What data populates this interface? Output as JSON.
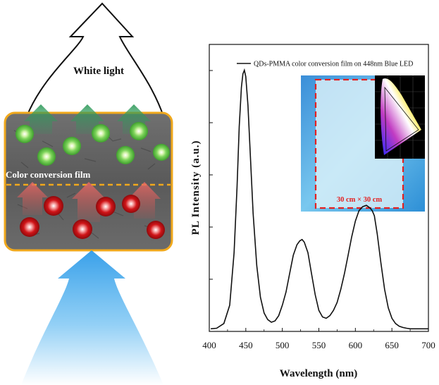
{
  "schematic": {
    "top_label": "White light",
    "film_label": "Color conversion film",
    "colors": {
      "green_qd": "#5fcf4a",
      "red_qd": "#c90f12",
      "film_border": "#f0a81c",
      "blue_led": "#3aa9ee",
      "arrow_green": "#2e9a5a",
      "arrow_red": "#e0504f"
    }
  },
  "chart_data": {
    "type": "line",
    "title": "",
    "xlabel": "Wavelength (nm)",
    "ylabel": "PL Intensity (a.u.)",
    "xlim": [
      400,
      700
    ],
    "ylim": [
      0,
      1.0
    ],
    "xticks": [
      400,
      450,
      500,
      550,
      600,
      650,
      700
    ],
    "ytick_labels_shown": false,
    "grid": false,
    "legend_position": "top-right",
    "series": [
      {
        "name": "QDs-PMMA color conversion film on 448nm Blue LED",
        "x": [
          402,
          410,
          420,
          428,
          434,
          438,
          441,
          444,
          446,
          448,
          450,
          453,
          456,
          460,
          465,
          470,
          475,
          480,
          485,
          490,
          495,
          500,
          505,
          510,
          515,
          520,
          524,
          527,
          530,
          535,
          540,
          545,
          550,
          555,
          560,
          565,
          570,
          575,
          580,
          585,
          590,
          595,
          600,
          605,
          610,
          615,
          620,
          623,
          626,
          630,
          635,
          640,
          645,
          650,
          655,
          660,
          665,
          670,
          675,
          680,
          685,
          690,
          695,
          700
        ],
        "y": [
          0.01,
          0.012,
          0.03,
          0.1,
          0.3,
          0.55,
          0.78,
          0.93,
          0.98,
          0.995,
          0.97,
          0.86,
          0.68,
          0.45,
          0.25,
          0.13,
          0.07,
          0.045,
          0.035,
          0.04,
          0.06,
          0.1,
          0.15,
          0.22,
          0.29,
          0.33,
          0.345,
          0.35,
          0.34,
          0.3,
          0.22,
          0.14,
          0.08,
          0.055,
          0.05,
          0.06,
          0.08,
          0.11,
          0.16,
          0.22,
          0.29,
          0.36,
          0.42,
          0.46,
          0.475,
          0.48,
          0.47,
          0.46,
          0.44,
          0.37,
          0.26,
          0.16,
          0.09,
          0.05,
          0.03,
          0.02,
          0.015,
          0.012,
          0.01,
          0.01,
          0.01,
          0.01,
          0.01,
          0.01
        ]
      }
    ],
    "inset": {
      "label": "30 cm × 30 cm"
    }
  }
}
